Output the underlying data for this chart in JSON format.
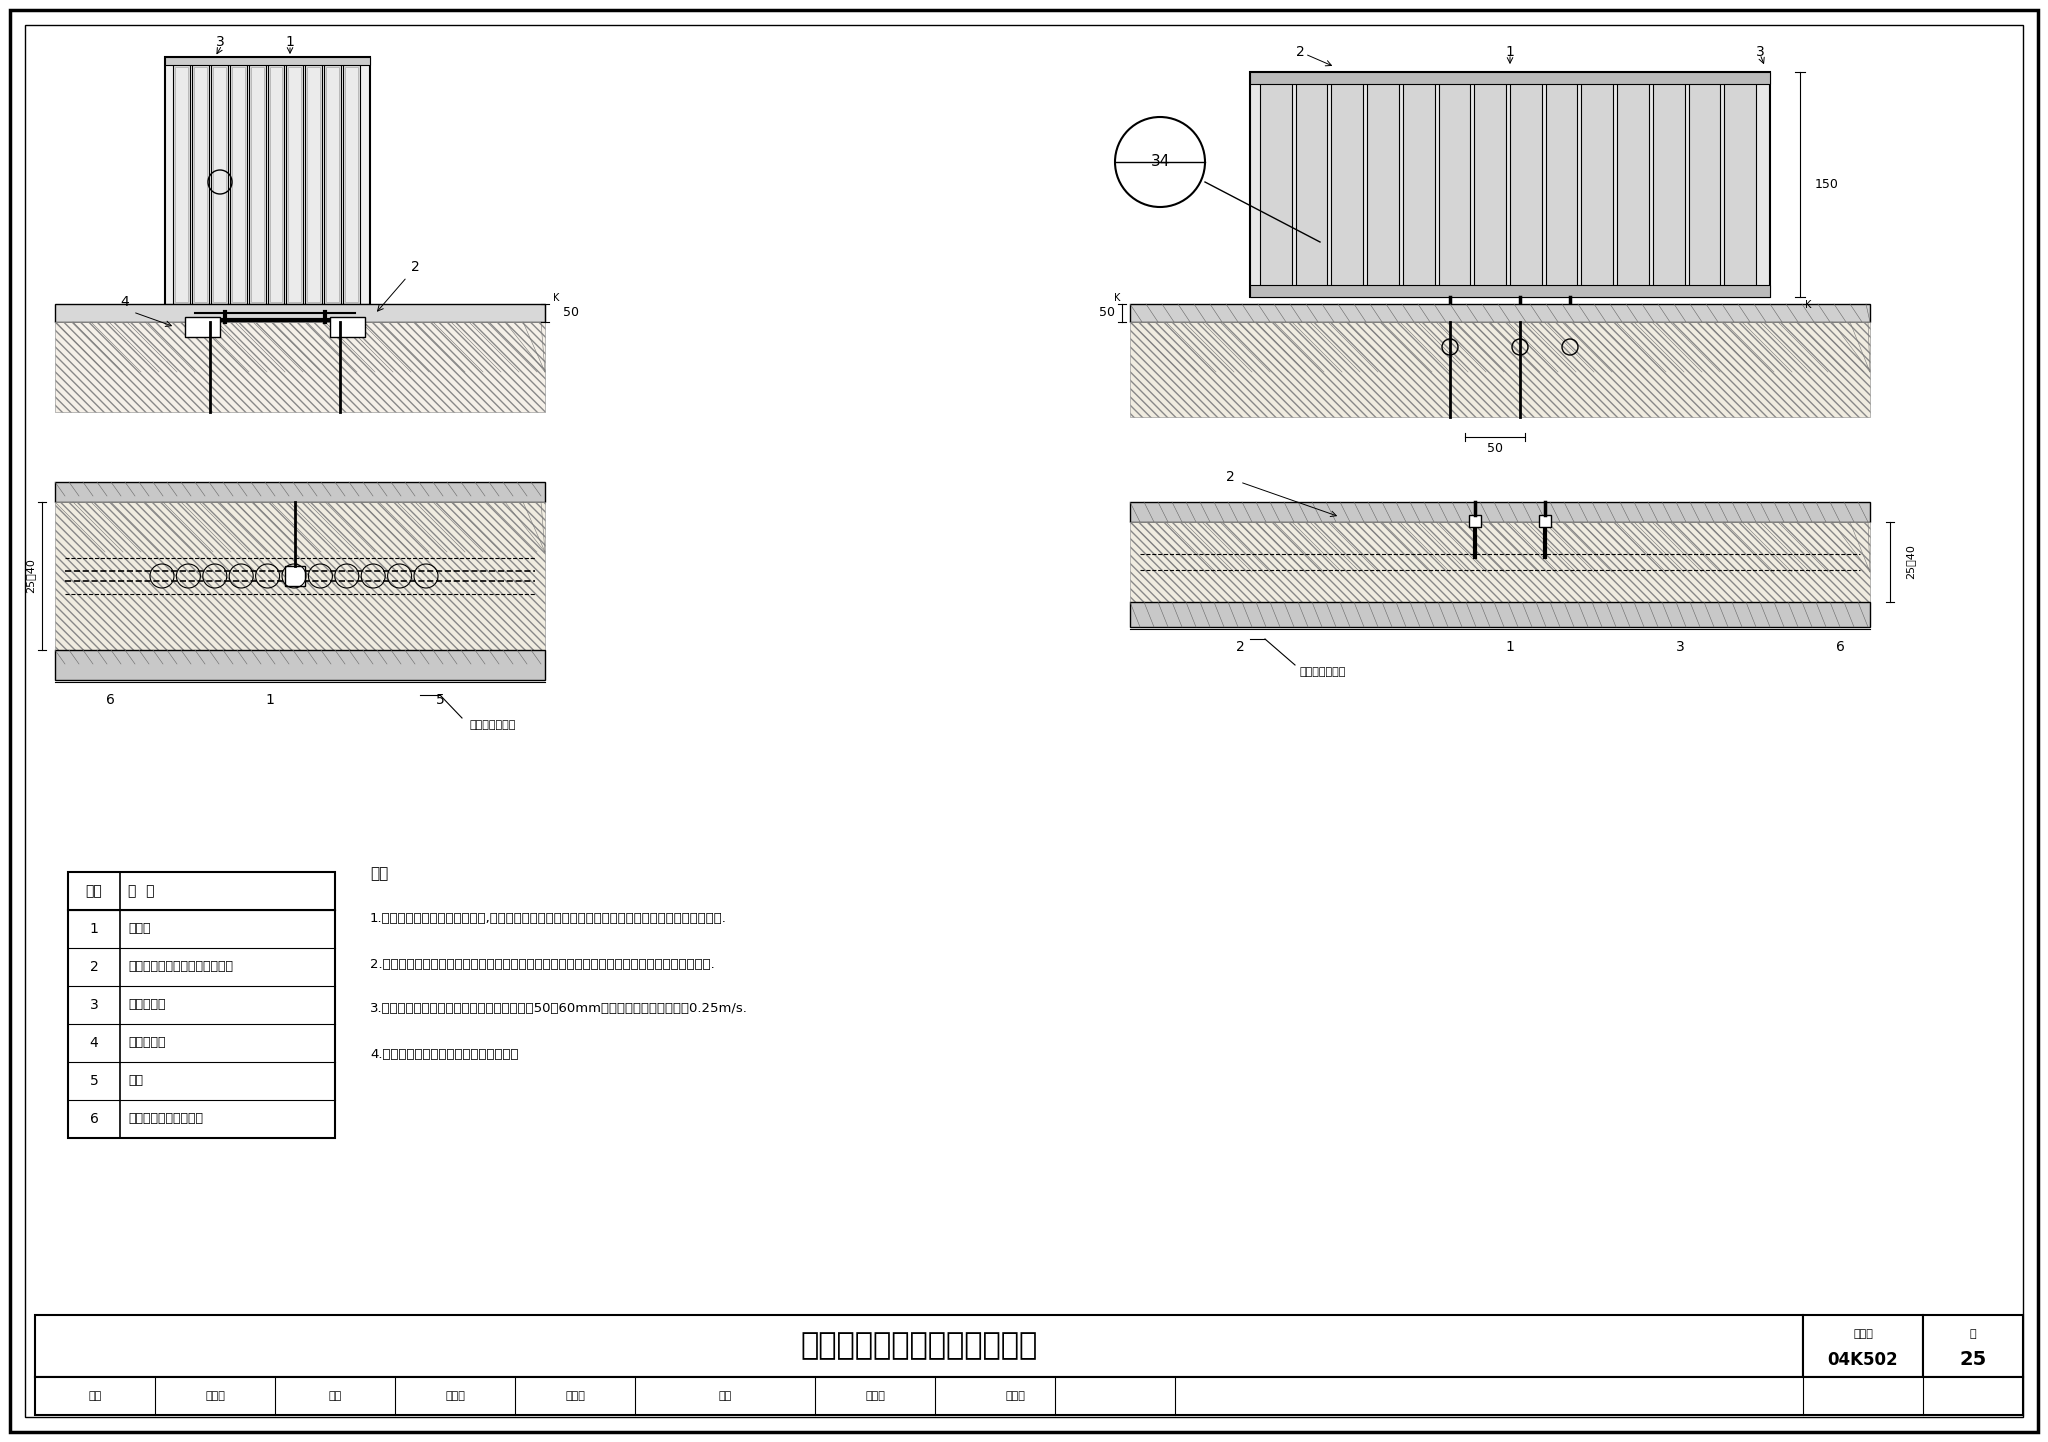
{
  "title_text": "下分双管系统散热器下进下出",
  "atlas_label": "图集号",
  "atlas_num": "04K502",
  "page_label": "页",
  "page_num": "25",
  "table_headers": [
    "编号",
    "名  称"
  ],
  "table_rows": [
    [
      "1",
      "散热器"
    ],
    [
      "2",
      "角阀（内置散热器温度控制阀）"
    ],
    [
      "3",
      "手动排气阀"
    ],
    [
      "4",
      "回水关断阀"
    ],
    [
      "5",
      "三通"
    ],
    [
      "6",
      "管道槽（设计要求时）"
    ]
  ],
  "notes_title": "注：",
  "notes": [
    "1.本图适用于明管为热镀锌钢管,填充层内左图为可热熔连接右图为不可热熔连接的塑料管材的场合.",
    "2.埋地管道仅连接散热器处可采用相同材质的专用连接件热熔连接，其它部位不应设置连接配件.",
    "3.管道槽或填充层内并行敷设的管道间距宜为50～60mm，管道中水流速不宜小于0.25m/s.",
    "4.本图散热器内部应有水流导向的装置。"
  ],
  "sig_row": [
    "申核",
    "孙智华",
    "校对",
    "付娜娜",
    "付娜娜",
    "设计",
    "赵立民",
    "赵立民",
    "页",
    "25"
  ],
  "label_maoshe": "敷设于填充层内",
  "dim_50": "50",
  "dim_25_40": "25～40",
  "dim_150": "150",
  "label_34": "34"
}
